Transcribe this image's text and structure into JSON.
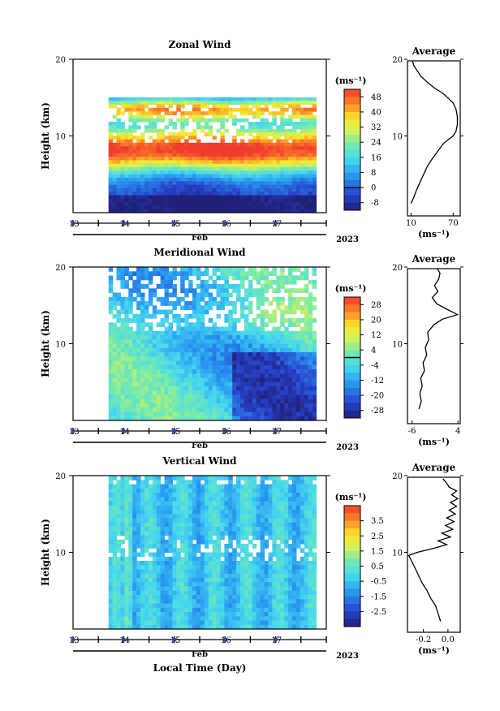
{
  "chart_data": [
    {
      "type": "heatmap",
      "title": "Zonal Wind",
      "ylabel": "Height (km)",
      "ylim": [
        0,
        20
      ],
      "yticks": [
        "20",
        "10"
      ],
      "x_ticks": [
        "13",
        "14",
        "15",
        "16",
        "17"
      ],
      "x_month": "Feb",
      "x_year": "2023",
      "xlim": [
        12.5,
        17.5
      ],
      "data_xrange": [
        13.2,
        17.3
      ],
      "colorbar": {
        "unit": "(ms⁻¹)",
        "ticks": [
          "48",
          "40",
          "32",
          "24",
          "16",
          "8",
          "0",
          "-8"
        ],
        "range": [
          -12,
          52
        ],
        "zero_line": 0
      },
      "profile": {
        "title": "Average",
        "xlabel": "(ms⁻¹)",
        "xticks": [
          "10",
          "70"
        ],
        "xlim": [
          5,
          80
        ],
        "points": [
          [
            10,
            1.2
          ],
          [
            14,
            2
          ],
          [
            18,
            3
          ],
          [
            23,
            4
          ],
          [
            28,
            5
          ],
          [
            33,
            6
          ],
          [
            40,
            7
          ],
          [
            48,
            8
          ],
          [
            56,
            9
          ],
          [
            64,
            9.6
          ],
          [
            70,
            10
          ],
          [
            74,
            10.6
          ],
          [
            76,
            11.5
          ],
          [
            76,
            12.5
          ],
          [
            74,
            13.5
          ],
          [
            70,
            14.3
          ],
          [
            62,
            15
          ],
          [
            55,
            15.6
          ],
          [
            44,
            16.2
          ],
          [
            33,
            17
          ],
          [
            24,
            17.8
          ],
          [
            18,
            18.6
          ],
          [
            14,
            19.2
          ],
          [
            12,
            19.8
          ]
        ]
      }
    },
    {
      "type": "heatmap",
      "title": "Meridional Wind",
      "ylabel": "Height (km)",
      "ylim": [
        0,
        20
      ],
      "yticks": [
        "20",
        "10"
      ],
      "x_ticks": [
        "13",
        "14",
        "15",
        "16",
        "17"
      ],
      "x_month": "Feb",
      "x_year": "2023",
      "xlim": [
        12.5,
        17.5
      ],
      "data_xrange": [
        13.2,
        17.3
      ],
      "colorbar": {
        "unit": "(ms⁻¹)",
        "ticks": [
          "28",
          "20",
          "12",
          "4",
          "-4",
          "-12",
          "-20",
          "-28"
        ],
        "range": [
          -32,
          32
        ],
        "zero_line": 0
      },
      "profile": {
        "title": "Average",
        "xlabel": "(ms⁻¹)",
        "xticks": [
          "-6",
          "4"
        ],
        "xlim": [
          -7,
          4.5
        ],
        "points": [
          [
            -4.5,
            1.5
          ],
          [
            -4,
            2.5
          ],
          [
            -4.3,
            3.5
          ],
          [
            -3.8,
            4.5
          ],
          [
            -4.1,
            5.5
          ],
          [
            -3.3,
            6.5
          ],
          [
            -3.6,
            7.5
          ],
          [
            -2.8,
            8.5
          ],
          [
            -3.1,
            9.5
          ],
          [
            -2.4,
            10.5
          ],
          [
            -2.6,
            11.5
          ],
          [
            -1.2,
            12.5
          ],
          [
            0.6,
            13.2
          ],
          [
            3.9,
            13.8
          ],
          [
            1.6,
            14.5
          ],
          [
            -0.6,
            15.2
          ],
          [
            -1.6,
            16
          ],
          [
            -0.4,
            16.8
          ],
          [
            -1.1,
            17.6
          ],
          [
            -0.2,
            18.4
          ],
          [
            0.1,
            19.2
          ],
          [
            -0.5,
            19.8
          ]
        ]
      }
    },
    {
      "type": "heatmap",
      "title": "Vertical Wind",
      "ylabel": "Height (km)",
      "ylim": [
        0,
        20
      ],
      "yticks": [
        "20",
        "10"
      ],
      "x_ticks": [
        "13",
        "14",
        "15",
        "16",
        "17"
      ],
      "x_month": "Feb",
      "x_year": "2023",
      "xlabel": "Local Time (Day)",
      "xlim": [
        12.5,
        17.5
      ],
      "data_xrange": [
        13.2,
        17.3
      ],
      "colorbar": {
        "unit": "(ms⁻¹)",
        "ticks": [
          "3.5",
          "2.5",
          "1.5",
          "0.5",
          "-0.5",
          "-1.5",
          "-2.5"
        ],
        "range": [
          -3.5,
          4.5
        ],
        "zero_line": null
      },
      "profile": {
        "title": "Average",
        "xlabel": "(ms⁻¹)",
        "xticks": [
          "-0.2",
          "0.0"
        ],
        "xlim": [
          -0.33,
          0.1
        ],
        "points": [
          [
            -0.06,
            1
          ],
          [
            -0.08,
            2
          ],
          [
            -0.1,
            3
          ],
          [
            -0.14,
            4
          ],
          [
            -0.17,
            5
          ],
          [
            -0.21,
            6
          ],
          [
            -0.24,
            7
          ],
          [
            -0.27,
            8
          ],
          [
            -0.3,
            9
          ],
          [
            -0.32,
            9.6
          ],
          [
            -0.25,
            10
          ],
          [
            -0.12,
            10.5
          ],
          [
            -0.01,
            11
          ],
          [
            -0.08,
            11.5
          ],
          [
            0.02,
            12
          ],
          [
            -0.05,
            12.5
          ],
          [
            0.04,
            13
          ],
          [
            -0.02,
            13.5
          ],
          [
            0.05,
            14
          ],
          [
            -0.01,
            14.5
          ],
          [
            0.06,
            15
          ],
          [
            0.01,
            15.5
          ],
          [
            0.07,
            16
          ],
          [
            0.02,
            16.5
          ],
          [
            0.08,
            17
          ],
          [
            0.03,
            17.5
          ],
          [
            0.07,
            18
          ],
          [
            0.01,
            18.5
          ],
          [
            -0.01,
            19
          ],
          [
            -0.04,
            19.6
          ]
        ]
      }
    }
  ]
}
